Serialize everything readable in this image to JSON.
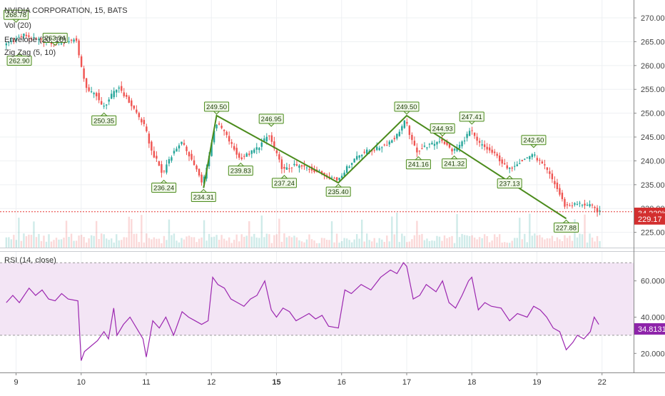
{
  "symbol_title": "NVIDIA CORPORATION, 15, BATS",
  "indicators": {
    "vol": "Vol (20)",
    "envelope": "Envelope (20, 10)",
    "zigzag": "Zig Zag (5, 10)",
    "rsi": "RSI (14, close)"
  },
  "colors": {
    "up": "#26a69a",
    "down": "#ef5350",
    "zigzag": "#4b8b1c",
    "label_bg": "#f1f8e9",
    "rsi_line": "#9c27b0",
    "rsi_band": "#f3e5f5",
    "price_line": "#e53935",
    "vol_badge": "#d32f2f",
    "rsi_badge": "#8e24aa"
  },
  "chart_data": {
    "type": "candlestick",
    "x_tick_labels": [
      "9",
      "10",
      "11",
      "12",
      "15",
      "16",
      "17",
      "18",
      "19",
      "22"
    ],
    "x_tick_bold": [
      "15"
    ],
    "price_axis": {
      "ticks": [
        "225.00",
        "230.00",
        "235.00",
        "240.00",
        "245.00",
        "250.00",
        "255.00",
        "260.00",
        "265.00",
        "270.00"
      ],
      "range": [
        223,
        272.5
      ]
    },
    "rsi_axis": {
      "ticks": [
        "20.0000",
        "40.0000",
        "60.0000"
      ],
      "range": [
        15,
        76
      ],
      "bands": [
        30,
        70
      ]
    },
    "current_price": "229.17",
    "current_volume": "34.229K",
    "current_rsi": "34.8131",
    "zigzag_pivots": [
      {
        "day": 0.0,
        "price": 268.78,
        "label": "268.78"
      },
      {
        "day": 0.05,
        "price": 262.9,
        "label": "262.90"
      },
      {
        "day": 0.6,
        "price": 263.94,
        "label": "263.94"
      },
      {
        "day": 1.35,
        "price": 250.35,
        "label": "250.35"
      },
      {
        "day": 2.27,
        "price": 236.24,
        "label": "236.24"
      },
      {
        "day": 2.88,
        "price": 234.31,
        "label": "234.31"
      },
      {
        "day": 3.08,
        "price": 249.5,
        "label": "249.50"
      },
      {
        "day": 3.45,
        "price": 239.83,
        "label": "239.83"
      },
      {
        "day": 3.92,
        "price": 246.95,
        "label": "246.95"
      },
      {
        "day": 4.12,
        "price": 237.24,
        "label": "237.24"
      },
      {
        "day": 4.95,
        "price": 235.4,
        "label": "235.40"
      },
      {
        "day": 6.0,
        "price": 249.5,
        "label": "249.50"
      },
      {
        "day": 6.18,
        "price": 241.16,
        "label": "241.16"
      },
      {
        "day": 6.55,
        "price": 244.93,
        "label": "244.93"
      },
      {
        "day": 6.73,
        "price": 241.32,
        "label": "241.32"
      },
      {
        "day": 7.0,
        "price": 247.41,
        "label": "247.41"
      },
      {
        "day": 7.58,
        "price": 237.13,
        "label": "237.13"
      },
      {
        "day": 7.95,
        "price": 242.5,
        "label": "242.50"
      },
      {
        "day": 8.45,
        "price": 227.88,
        "label": "227.88"
      }
    ],
    "zigzag_line": [
      [
        2.88,
        234.31
      ],
      [
        3.08,
        249.5
      ],
      [
        4.95,
        235.4
      ],
      [
        6.0,
        249.5
      ],
      [
        8.45,
        227.88
      ]
    ],
    "price_path": [
      [
        -0.15,
        264.5
      ],
      [
        0.0,
        265.5
      ],
      [
        0.15,
        266.5
      ],
      [
        0.3,
        265.5
      ],
      [
        0.5,
        265.0
      ],
      [
        0.6,
        264.6
      ],
      [
        0.75,
        265.0
      ],
      [
        0.95,
        265.5
      ],
      [
        1.0,
        260.5
      ],
      [
        1.05,
        258.0
      ],
      [
        1.12,
        254.5
      ],
      [
        1.25,
        254.0
      ],
      [
        1.35,
        251.0
      ],
      [
        1.5,
        254.0
      ],
      [
        1.6,
        255.5
      ],
      [
        1.72,
        253.0
      ],
      [
        1.85,
        250.5
      ],
      [
        2.0,
        247.0
      ],
      [
        2.1,
        242.0
      ],
      [
        2.2,
        239.5
      ],
      [
        2.27,
        237.0
      ],
      [
        2.35,
        240.0
      ],
      [
        2.45,
        242.0
      ],
      [
        2.55,
        244.0
      ],
      [
        2.65,
        242.0
      ],
      [
        2.78,
        238.5
      ],
      [
        2.88,
        235.0
      ],
      [
        3.0,
        242.0
      ],
      [
        3.08,
        248.0
      ],
      [
        3.2,
        246.5
      ],
      [
        3.3,
        244.0
      ],
      [
        3.45,
        240.5
      ],
      [
        3.6,
        241.5
      ],
      [
        3.75,
        243.0
      ],
      [
        3.9,
        245.5
      ],
      [
        4.0,
        242.0
      ],
      [
        4.12,
        238.0
      ],
      [
        4.3,
        239.0
      ],
      [
        4.5,
        238.5
      ],
      [
        4.7,
        237.5
      ],
      [
        4.95,
        236.0
      ],
      [
        5.1,
        238.5
      ],
      [
        5.25,
        241.0
      ],
      [
        5.4,
        242.0
      ],
      [
        5.55,
        242.5
      ],
      [
        5.7,
        243.5
      ],
      [
        5.85,
        245.0
      ],
      [
        6.0,
        248.5
      ],
      [
        6.1,
        244.0
      ],
      [
        6.18,
        242.0
      ],
      [
        6.3,
        243.0
      ],
      [
        6.42,
        243.5
      ],
      [
        6.55,
        244.5
      ],
      [
        6.65,
        243.0
      ],
      [
        6.73,
        242.0
      ],
      [
        6.85,
        243.5
      ],
      [
        7.0,
        246.5
      ],
      [
        7.1,
        244.0
      ],
      [
        7.25,
        242.5
      ],
      [
        7.4,
        241.0
      ],
      [
        7.58,
        238.0
      ],
      [
        7.7,
        239.5
      ],
      [
        7.85,
        240.5
      ],
      [
        7.95,
        241.5
      ],
      [
        8.05,
        240.0
      ],
      [
        8.15,
        238.5
      ],
      [
        8.3,
        235.0
      ],
      [
        8.45,
        230.5
      ],
      [
        8.55,
        230.8
      ],
      [
        8.7,
        231.0
      ],
      [
        8.85,
        230.5
      ],
      [
        8.98,
        229.2
      ]
    ],
    "rsi_path": [
      [
        -0.15,
        48
      ],
      [
        -0.05,
        52
      ],
      [
        0.05,
        48
      ],
      [
        0.2,
        56
      ],
      [
        0.3,
        52
      ],
      [
        0.4,
        55
      ],
      [
        0.5,
        50
      ],
      [
        0.6,
        49
      ],
      [
        0.7,
        53
      ],
      [
        0.8,
        50
      ],
      [
        0.95,
        49
      ],
      [
        1.0,
        16
      ],
      [
        1.05,
        21
      ],
      [
        1.15,
        24
      ],
      [
        1.25,
        27
      ],
      [
        1.35,
        32
      ],
      [
        1.42,
        28
      ],
      [
        1.5,
        45
      ],
      [
        1.55,
        30
      ],
      [
        1.65,
        36
      ],
      [
        1.75,
        40
      ],
      [
        1.85,
        34
      ],
      [
        1.95,
        28
      ],
      [
        2.0,
        18
      ],
      [
        2.1,
        38
      ],
      [
        2.2,
        34
      ],
      [
        2.3,
        40
      ],
      [
        2.42,
        30
      ],
      [
        2.55,
        43
      ],
      [
        2.65,
        40
      ],
      [
        2.75,
        38
      ],
      [
        2.85,
        36
      ],
      [
        2.95,
        38
      ],
      [
        3.02,
        62
      ],
      [
        3.1,
        58
      ],
      [
        3.2,
        56
      ],
      [
        3.3,
        50
      ],
      [
        3.4,
        48
      ],
      [
        3.5,
        46
      ],
      [
        3.6,
        50
      ],
      [
        3.7,
        52
      ],
      [
        3.82,
        60
      ],
      [
        3.92,
        44
      ],
      [
        4.0,
        40
      ],
      [
        4.1,
        45
      ],
      [
        4.2,
        43
      ],
      [
        4.3,
        38
      ],
      [
        4.4,
        40
      ],
      [
        4.5,
        42
      ],
      [
        4.6,
        39
      ],
      [
        4.7,
        41
      ],
      [
        4.8,
        35
      ],
      [
        4.95,
        34
      ],
      [
        5.05,
        55
      ],
      [
        5.15,
        53
      ],
      [
        5.3,
        58
      ],
      [
        5.45,
        55
      ],
      [
        5.6,
        62
      ],
      [
        5.75,
        66
      ],
      [
        5.85,
        64
      ],
      [
        5.95,
        70
      ],
      [
        6.0,
        68
      ],
      [
        6.1,
        50
      ],
      [
        6.2,
        52
      ],
      [
        6.3,
        58
      ],
      [
        6.45,
        54
      ],
      [
        6.55,
        60
      ],
      [
        6.65,
        48
      ],
      [
        6.75,
        45
      ],
      [
        6.85,
        52
      ],
      [
        6.95,
        60
      ],
      [
        7.0,
        62
      ],
      [
        7.1,
        44
      ],
      [
        7.2,
        48
      ],
      [
        7.3,
        46
      ],
      [
        7.45,
        45
      ],
      [
        7.58,
        38
      ],
      [
        7.7,
        42
      ],
      [
        7.85,
        40
      ],
      [
        7.95,
        46
      ],
      [
        8.05,
        44
      ],
      [
        8.15,
        40
      ],
      [
        8.25,
        34
      ],
      [
        8.35,
        32
      ],
      [
        8.45,
        22
      ],
      [
        8.55,
        26
      ],
      [
        8.62,
        30
      ],
      [
        8.72,
        28
      ],
      [
        8.82,
        32
      ],
      [
        8.88,
        40
      ],
      [
        8.95,
        36
      ]
    ]
  }
}
